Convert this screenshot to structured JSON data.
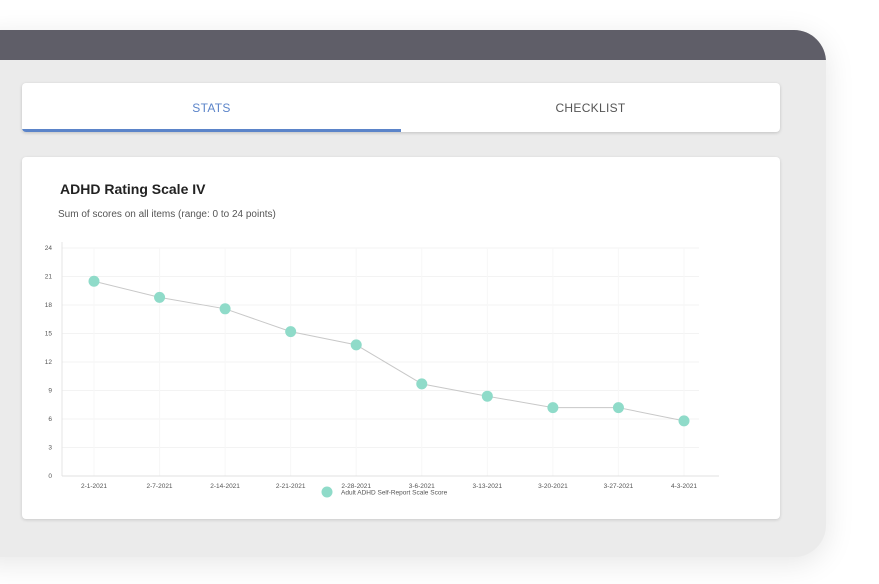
{
  "tabs": [
    {
      "label": "STATS",
      "active": true
    },
    {
      "label": "CHECKLIST",
      "active": false
    }
  ],
  "colors": {
    "accent": "#5b84c9",
    "topbar": "#5f5e68",
    "marker": "#8fdbc9",
    "line": "#c8c8c8"
  },
  "chart_data": {
    "type": "line",
    "title": "ADHD Rating Scale IV",
    "subtitle": "Sum of scores on all items (range: 0 to 24 points)",
    "categories": [
      "2-1-2021",
      "2-7-2021",
      "2-14-2021",
      "2-21-2021",
      "2-28-2021",
      "3-6-2021",
      "3-13-2021",
      "3-20-2021",
      "3-27-2021",
      "4-3-2021"
    ],
    "series": [
      {
        "name": "Adult ADHD Self-Report Scale Score",
        "values": [
          20.5,
          18.8,
          17.6,
          15.2,
          13.8,
          9.7,
          8.4,
          7.2,
          7.2,
          5.8
        ]
      }
    ],
    "ylim": [
      0,
      24
    ],
    "yticks": [
      0,
      3,
      6,
      9,
      12,
      15,
      18,
      21,
      24
    ],
    "grid": true,
    "legend_position": "bottom-center"
  }
}
